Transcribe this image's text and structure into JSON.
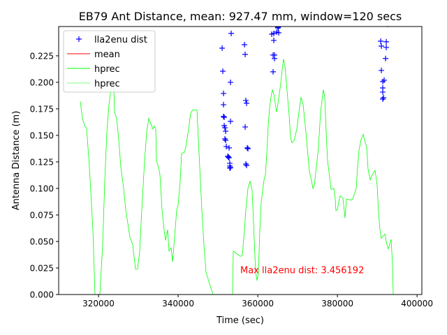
{
  "chart_data": {
    "type": "line",
    "title": "EB79 Ant Distance, mean: 927.47 mm, window=120 secs",
    "xlabel": "Time (sec)",
    "ylabel": "Antenna Distance (m)",
    "xlim": [
      310000,
      401200
    ],
    "ylim": [
      0,
      0.2526
    ],
    "x_ticks": [
      320000,
      340000,
      360000,
      380000,
      400000
    ],
    "x_tick_labels": [
      "320000",
      "340000",
      "360000",
      "380000",
      "400000"
    ],
    "y_ticks": [
      0,
      0.025,
      0.05,
      0.075,
      0.1,
      0.125,
      0.15,
      0.175,
      0.2,
      0.225
    ],
    "y_tick_labels": [
      "0.000",
      "0.025",
      "0.050",
      "0.075",
      "0.100",
      "0.125",
      "0.150",
      "0.175",
      "0.200",
      "0.225"
    ],
    "grid": false,
    "legend_position": "top-left",
    "legend": [
      {
        "label": "lla2enu dist",
        "color": "#0000ff",
        "style": "plus"
      },
      {
        "label": "mean",
        "color": "#ff0000",
        "style": "line"
      },
      {
        "label": "hprec",
        "color": "#00ff00",
        "style": "line"
      },
      {
        "label": "hprec",
        "color": "#00ff00",
        "style": "line-thin"
      }
    ],
    "annotation": {
      "text": "Max lla2enu dist: 3.456192",
      "x": 355600,
      "y": 0.02,
      "color": "#ff0000"
    },
    "series": [
      {
        "name": "lla2enu dist",
        "type": "scatter",
        "color": "#0000ff",
        "points": [
          [
            351044,
            0.2322
          ],
          [
            351220,
            0.2105
          ],
          [
            351394,
            0.1895
          ],
          [
            351394,
            0.1789
          ],
          [
            351394,
            0.1678
          ],
          [
            351570,
            0.1671
          ],
          [
            351570,
            0.1592
          ],
          [
            351745,
            0.1572
          ],
          [
            351920,
            0.1539
          ],
          [
            351745,
            0.1467
          ],
          [
            351920,
            0.1454
          ],
          [
            352096,
            0.1395
          ],
          [
            352447,
            0.1303
          ],
          [
            352622,
            0.1296
          ],
          [
            352798,
            0.1289
          ],
          [
            352973,
            0.1237
          ],
          [
            352973,
            0.1211
          ],
          [
            353148,
            0.1197
          ],
          [
            352973,
            0.1191
          ],
          [
            353324,
            0.2461
          ],
          [
            353148,
            0.2
          ],
          [
            353148,
            0.1632
          ],
          [
            352798,
            0.1382
          ],
          [
            356656,
            0.2355
          ],
          [
            356832,
            0.2263
          ],
          [
            357007,
            0.1829
          ],
          [
            357183,
            0.1803
          ],
          [
            356832,
            0.1579
          ],
          [
            357358,
            0.1382
          ],
          [
            357534,
            0.1375
          ],
          [
            357007,
            0.123
          ],
          [
            357183,
            0.1217
          ],
          [
            363497,
            0.2454
          ],
          [
            364023,
            0.2461
          ],
          [
            364023,
            0.2395
          ],
          [
            363848,
            0.2257
          ],
          [
            364199,
            0.2257
          ],
          [
            363848,
            0.2099
          ],
          [
            364199,
            0.2224
          ],
          [
            365076,
            0.2513
          ],
          [
            365251,
            0.2526
          ],
          [
            364725,
            0.2474
          ],
          [
            365076,
            0.252
          ],
          [
            365251,
            0.2467
          ],
          [
            390859,
            0.2388
          ],
          [
            391035,
            0.2342
          ],
          [
            392263,
            0.2382
          ],
          [
            392263,
            0.2329
          ],
          [
            392087,
            0.2224
          ],
          [
            391035,
            0.2112
          ],
          [
            391386,
            0.2007
          ],
          [
            391736,
            0.202
          ],
          [
            391386,
            0.1947
          ],
          [
            391386,
            0.1908
          ],
          [
            391561,
            0.1855
          ],
          [
            391386,
            0.1842
          ],
          [
            392614,
            0.2546
          ]
        ]
      },
      {
        "name": "hprec",
        "type": "line",
        "color": "#00ff00",
        "points": [
          [
            315437,
            0.182
          ],
          [
            315964,
            0.166
          ],
          [
            316665,
            0.158
          ],
          [
            317016,
            0.157
          ],
          [
            317718,
            0.12
          ],
          [
            318595,
            0.061
          ],
          [
            319121,
            0.0
          ],
          [
            319296,
            -0.012
          ],
          [
            319998,
            -0.012
          ],
          [
            320349,
            0.0
          ],
          [
            321050,
            0.047
          ],
          [
            321576,
            0.107
          ],
          [
            322103,
            0.153
          ],
          [
            322629,
            0.179
          ],
          [
            323330,
            0.199
          ],
          [
            323857,
            0.195
          ],
          [
            324032,
            0.172
          ],
          [
            324558,
            0.166
          ],
          [
            325084,
            0.146
          ],
          [
            325611,
            0.12
          ],
          [
            326312,
            0.1
          ],
          [
            326838,
            0.08
          ],
          [
            327365,
            0.067
          ],
          [
            327891,
            0.054
          ],
          [
            328592,
            0.047
          ],
          [
            329294,
            0.024
          ],
          [
            329820,
            0.024
          ],
          [
            330346,
            0.041
          ],
          [
            330873,
            0.08
          ],
          [
            331574,
            0.126
          ],
          [
            332100,
            0.153
          ],
          [
            332627,
            0.166
          ],
          [
            333328,
            0.159
          ],
          [
            333679,
            0.156
          ],
          [
            334030,
            0.159
          ],
          [
            334381,
            0.156
          ],
          [
            334556,
            0.126
          ],
          [
            335082,
            0.12
          ],
          [
            335433,
            0.113
          ],
          [
            335959,
            0.08
          ],
          [
            336485,
            0.061
          ],
          [
            336836,
            0.051
          ],
          [
            337362,
            0.061
          ],
          [
            337713,
            0.041
          ],
          [
            338239,
            0.044
          ],
          [
            338590,
            0.031
          ],
          [
            339116,
            0.054
          ],
          [
            339643,
            0.08
          ],
          [
            339993,
            0.084
          ],
          [
            340520,
            0.107
          ],
          [
            340870,
            0.133
          ],
          [
            341572,
            0.134
          ],
          [
            341923,
            0.139
          ],
          [
            342624,
            0.156
          ],
          [
            343151,
            0.171
          ],
          [
            343677,
            0.174
          ],
          [
            344729,
            0.174
          ],
          [
            345255,
            0.133
          ],
          [
            345957,
            0.08
          ],
          [
            346483,
            0.047
          ],
          [
            347009,
            0.021
          ],
          [
            348062,
            0.008
          ],
          [
            348763,
            0.0
          ],
          [
            348939,
            -0.012
          ],
          [
            353499,
            -0.012
          ],
          [
            353674,
            0.0
          ],
          [
            353850,
            0.041
          ],
          [
            354902,
            0.038
          ],
          [
            355604,
            0.036
          ],
          [
            356130,
            0.037
          ],
          [
            356656,
            0.061
          ],
          [
            357007,
            0.08
          ],
          [
            357534,
            0.1
          ],
          [
            358060,
            0.107
          ],
          [
            358586,
            0.098
          ],
          [
            358937,
            0.067
          ],
          [
            359463,
            0.021
          ],
          [
            359814,
            0.013
          ],
          [
            360165,
            0.021
          ],
          [
            360516,
            0.061
          ],
          [
            360866,
            0.087
          ],
          [
            361568,
            0.108
          ],
          [
            361918,
            0.113
          ],
          [
            362269,
            0.133
          ],
          [
            362620,
            0.159
          ],
          [
            362971,
            0.176
          ],
          [
            363322,
            0.186
          ],
          [
            363672,
            0.193
          ],
          [
            364023,
            0.189
          ],
          [
            364725,
            0.172
          ],
          [
            365076,
            0.18
          ],
          [
            365777,
            0.199
          ],
          [
            366128,
            0.212
          ],
          [
            366479,
            0.222
          ],
          [
            366830,
            0.215
          ],
          [
            367356,
            0.192
          ],
          [
            367882,
            0.169
          ],
          [
            368233,
            0.148
          ],
          [
            368584,
            0.143
          ],
          [
            369110,
            0.145
          ],
          [
            369812,
            0.156
          ],
          [
            370338,
            0.172
          ],
          [
            370864,
            0.186
          ],
          [
            371391,
            0.179
          ],
          [
            372092,
            0.153
          ],
          [
            372969,
            0.116
          ],
          [
            373495,
            0.107
          ],
          [
            373846,
            0.1
          ],
          [
            374196,
            0.103
          ],
          [
            374723,
            0.12
          ],
          [
            375249,
            0.139
          ],
          [
            375775,
            0.172
          ],
          [
            376477,
            0.193
          ],
          [
            376828,
            0.186
          ],
          [
            377178,
            0.153
          ],
          [
            377529,
            0.126
          ],
          [
            377880,
            0.116
          ],
          [
            378406,
            0.099
          ],
          [
            379108,
            0.1
          ],
          [
            379458,
            0.09
          ],
          [
            379634,
            0.079
          ],
          [
            379985,
            0.08
          ],
          [
            380335,
            0.087
          ],
          [
            380686,
            0.093
          ],
          [
            381388,
            0.091
          ],
          [
            381914,
            0.072
          ],
          [
            382265,
            0.09
          ],
          [
            383493,
            0.089
          ],
          [
            383843,
            0.09
          ],
          [
            384720,
            0.1
          ],
          [
            385071,
            0.12
          ],
          [
            385422,
            0.136
          ],
          [
            385948,
            0.146
          ],
          [
            386474,
            0.151
          ],
          [
            387001,
            0.143
          ],
          [
            387352,
            0.139
          ],
          [
            387702,
            0.118
          ],
          [
            388229,
            0.108
          ],
          [
            388755,
            0.113
          ],
          [
            389457,
            0.117
          ],
          [
            389983,
            0.103
          ],
          [
            390334,
            0.077
          ],
          [
            390685,
            0.061
          ],
          [
            391035,
            0.053
          ],
          [
            391912,
            0.057
          ],
          [
            392439,
            0.047
          ],
          [
            392789,
            0.043
          ],
          [
            393491,
            0.052
          ],
          [
            393842,
            0.028
          ],
          [
            394017,
            0.0
          ],
          [
            394193,
            -0.012
          ]
        ]
      }
    ]
  }
}
